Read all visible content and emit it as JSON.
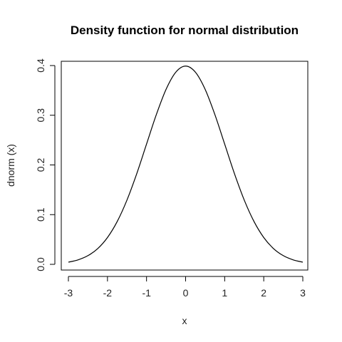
{
  "chart_data": {
    "type": "line",
    "title": "Density function for normal distribution",
    "xlabel": "x",
    "ylabel": "dnorm (x)",
    "xlim": [
      -3,
      3
    ],
    "ylim": [
      0,
      0.4
    ],
    "x_ticks": [
      "-3",
      "-2",
      "-1",
      "0",
      "1",
      "2",
      "3"
    ],
    "y_ticks": [
      "0.0",
      "0.1",
      "0.2",
      "0.3",
      "0.4"
    ],
    "grid": false,
    "series": [
      {
        "x": [
          -3.0,
          -2.75,
          -2.5,
          -2.25,
          -2.0,
          -1.75,
          -1.5,
          -1.25,
          -1.0,
          -0.75,
          -0.5,
          -0.25,
          0.0,
          0.25,
          0.5,
          0.75,
          1.0,
          1.25,
          1.5,
          1.75,
          2.0,
          2.25,
          2.5,
          2.75,
          3.0
        ],
        "y": [
          0.0044,
          0.0091,
          0.0175,
          0.0317,
          0.054,
          0.0863,
          0.1295,
          0.1826,
          0.242,
          0.3011,
          0.3521,
          0.3867,
          0.3989,
          0.3867,
          0.3521,
          0.3011,
          0.242,
          0.1826,
          0.1295,
          0.0863,
          0.054,
          0.0317,
          0.0175,
          0.0091,
          0.0044
        ]
      }
    ]
  }
}
